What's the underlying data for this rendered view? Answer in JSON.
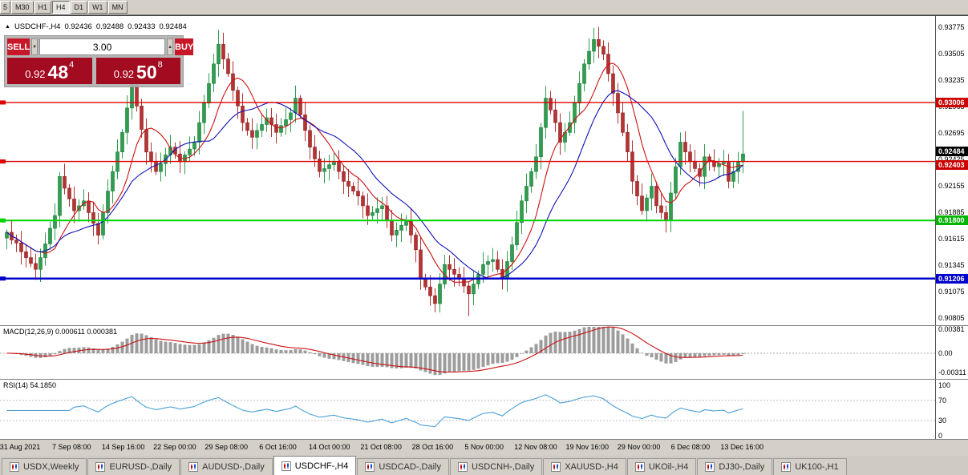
{
  "toolbar": {
    "timeframes": [
      {
        "label": "5"
      },
      {
        "label": "M30"
      },
      {
        "label": "H1"
      },
      {
        "label": "H4",
        "active": true
      },
      {
        "label": "D1"
      },
      {
        "label": "W1"
      },
      {
        "label": "MN"
      }
    ]
  },
  "chart": {
    "header": {
      "marker": "▲",
      "symbol": "USDCHF-,H4",
      "open": "0.92436",
      "high": "0.92488",
      "low": "0.92433",
      "close": "0.92484"
    },
    "trade_panel": {
      "sell_label": "SELL",
      "buy_label": "BUY",
      "volume": "3.00",
      "sell_price": {
        "prefix": "0.92",
        "big": "48",
        "sup": "4"
      },
      "buy_price": {
        "prefix": "0.92",
        "big": "50",
        "sup": "8"
      }
    },
    "hlines": [
      {
        "price": 0.93006,
        "color": "#dd0000",
        "width": 1.4,
        "kind": "resistance-line"
      },
      {
        "price": 0.92403,
        "color": "#dd0000",
        "width": 1.4,
        "kind": "resistance-line"
      },
      {
        "price": 0.918,
        "color": "#00d400",
        "width": 2,
        "kind": "support-line"
      },
      {
        "price": 0.91206,
        "color": "#0000cc",
        "width": 2.5,
        "kind": "support-line"
      }
    ],
    "badges": [
      {
        "price": 0.93006,
        "label": "0.93006",
        "color": "#cc0000",
        "kind": "line",
        "dy": 0
      },
      {
        "price": 0.92484,
        "label": "0.92484",
        "color": "#000000",
        "kind": "last-price",
        "dy": -3
      },
      {
        "price": 0.92403,
        "label": "0.92403",
        "color": "#cc0000",
        "kind": "line",
        "dy": 4
      },
      {
        "price": 0.918,
        "label": "0.91800",
        "color": "#00b400",
        "kind": "line",
        "dy": 0
      },
      {
        "price": 0.91206,
        "label": "0.91206",
        "color": "#0000cc",
        "kind": "line",
        "dy": 0
      }
    ],
    "y_ticks": [
      "0.93775",
      "0.93505",
      "0.93235",
      "0.92965",
      "0.92695",
      "0.92425",
      "0.92155",
      "0.91885",
      "0.91615",
      "0.91345",
      "0.91075",
      "0.90805"
    ]
  },
  "macd": {
    "name": "MACD(12,26,9)",
    "values": "0.000611 0.000381",
    "ticks": [
      "0.00381",
      "0.00",
      "-0.00311"
    ]
  },
  "rsi": {
    "name": "RSI(14)",
    "value": "54.1850",
    "ticks": [
      "100",
      "70",
      "30",
      "0"
    ]
  },
  "tabs": [
    {
      "label": "USDX,Weekly"
    },
    {
      "label": "EURUSD-,Daily"
    },
    {
      "label": "AUDUSD-,Daily"
    },
    {
      "label": "USDCHF-,H4",
      "active": true
    },
    {
      "label": "USDCAD-,Daily"
    },
    {
      "label": "USDCNH-,Daily"
    },
    {
      "label": "XAUUSD-,H4"
    },
    {
      "label": "UKOil-,H4"
    },
    {
      "label": "DJ30-,Daily"
    },
    {
      "label": "UK100-,H1"
    }
  ],
  "chart_data": {
    "type": "candlestick",
    "symbol": "USDCHF-",
    "timeframe": "H4",
    "ohlc_current": {
      "open": 0.92436,
      "high": 0.92488,
      "low": 0.92433,
      "close": 0.92484
    },
    "ylim": [
      0.90729,
      0.9389
    ],
    "x_labels": [
      "31 Aug 2021",
      "7 Sep 08:00",
      "14 Sep 16:00",
      "22 Sep 00:00",
      "29 Sep 08:00",
      "6 Oct 16:00",
      "14 Oct 00:00",
      "21 Oct 08:00",
      "28 Oct 16:00",
      "5 Nov 00:00",
      "12 Nov 08:00",
      "19 Nov 16:00",
      "29 Nov 00:00",
      "6 Dec 08:00",
      "13 Dec 16:00"
    ],
    "closes": [
      0.9168,
      0.916,
      0.9157,
      0.9148,
      0.9142,
      0.9136,
      0.913,
      0.9142,
      0.9156,
      0.9172,
      0.9185,
      0.9225,
      0.9213,
      0.9202,
      0.919,
      0.9195,
      0.92,
      0.9188,
      0.9177,
      0.9165,
      0.9188,
      0.921,
      0.923,
      0.925,
      0.927,
      0.9295,
      0.932,
      0.9297,
      0.9273,
      0.925,
      0.924,
      0.923,
      0.9238,
      0.9247,
      0.9255,
      0.9248,
      0.924,
      0.9247,
      0.9253,
      0.926,
      0.928,
      0.93,
      0.932,
      0.934,
      0.936,
      0.9345,
      0.933,
      0.9313,
      0.9297,
      0.928,
      0.9272,
      0.9265,
      0.9272,
      0.9278,
      0.9285,
      0.9278,
      0.927,
      0.9277,
      0.9283,
      0.929,
      0.9305,
      0.9288,
      0.9272,
      0.9255,
      0.9243,
      0.923,
      0.9233,
      0.9237,
      0.924,
      0.923,
      0.922,
      0.9215,
      0.921,
      0.9205,
      0.9195,
      0.9185,
      0.9188,
      0.9192,
      0.9195,
      0.918,
      0.9165,
      0.917,
      0.9175,
      0.918,
      0.9165,
      0.915,
      0.912,
      0.9112,
      0.9103,
      0.9095,
      0.9115,
      0.9135,
      0.913,
      0.9125,
      0.912,
      0.9113,
      0.9105,
      0.9115,
      0.9125,
      0.9135,
      0.9138,
      0.914,
      0.913,
      0.912,
      0.9138,
      0.9155,
      0.9178,
      0.92,
      0.9215,
      0.923,
      0.9245,
      0.9275,
      0.9305,
      0.9293,
      0.928,
      0.926,
      0.927,
      0.928,
      0.93,
      0.932,
      0.934,
      0.9353,
      0.9365,
      0.9358,
      0.935,
      0.933,
      0.931,
      0.929,
      0.927,
      0.925,
      0.922,
      0.9205,
      0.919,
      0.9203,
      0.9215,
      0.9195,
      0.9188,
      0.918,
      0.9208,
      0.9235,
      0.926,
      0.925,
      0.924,
      0.9233,
      0.9225,
      0.9245,
      0.924,
      0.9235,
      0.9238,
      0.924,
      0.922,
      0.923,
      0.924,
      0.9248
    ],
    "wick_overrides": {
      "44": {
        "h": 0.9375
      },
      "89": {
        "l": 0.9086
      },
      "96": {
        "l": 0.9082
      },
      "122": {
        "h": 0.9377
      },
      "153": {
        "h": 0.9292
      }
    },
    "colors": {
      "up": "#2f9e4f",
      "up_edge": "#1d7a38",
      "down": "#b43333",
      "down_edge": "#8e2222",
      "macd_hist": "#9c9c9c",
      "macd_signal": "#cc1111",
      "rsi_line": "#4aa0d8"
    },
    "indicators": {
      "ma": [
        {
          "period": 8,
          "color": "#cc1111"
        },
        {
          "period": 16,
          "color": "#1111bb"
        }
      ],
      "macd": {
        "fast": 12,
        "slow": 26,
        "signal": 9
      },
      "rsi": {
        "period": 14,
        "current": 54.185
      }
    }
  }
}
